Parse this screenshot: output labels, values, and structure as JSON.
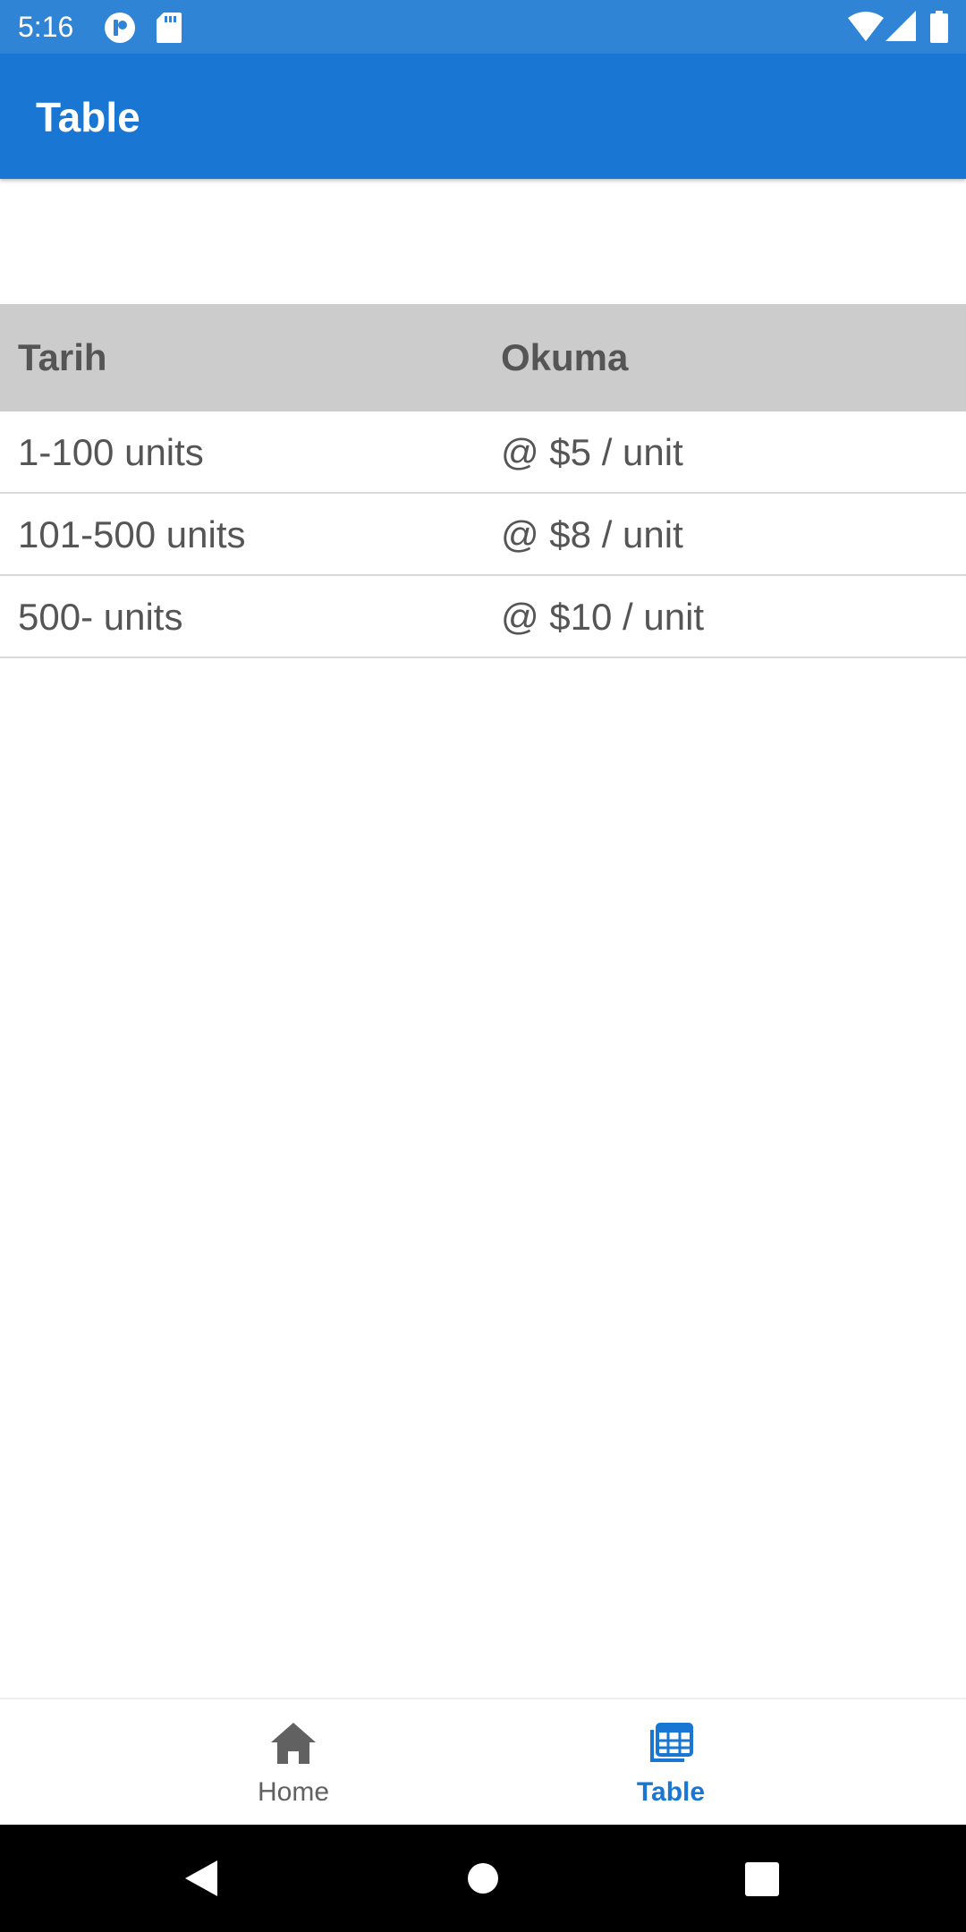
{
  "status_bar": {
    "time": "5:16",
    "icons": [
      "p-icon",
      "sd-card-icon",
      "wifi-icon",
      "signal-icon",
      "battery-icon"
    ]
  },
  "app_bar": {
    "title": "Table"
  },
  "table": {
    "headers": [
      "Tarih",
      "Okuma"
    ],
    "rows": [
      [
        "1-100 units",
        "@ $5 / unit"
      ],
      [
        "101-500 units",
        "@ $8 / unit"
      ],
      [
        "500- units",
        "@ $10 / unit"
      ]
    ]
  },
  "bottom_nav": {
    "items": [
      {
        "label": "Home",
        "icon": "home-icon",
        "selected": false
      },
      {
        "label": "Table",
        "icon": "table-icon",
        "selected": true
      }
    ]
  },
  "colors": {
    "status_bar": "#2f84d6",
    "app_bar": "#1976d2",
    "header_bg": "#cccccc",
    "accent": "#1976d2",
    "text": "#555555"
  }
}
